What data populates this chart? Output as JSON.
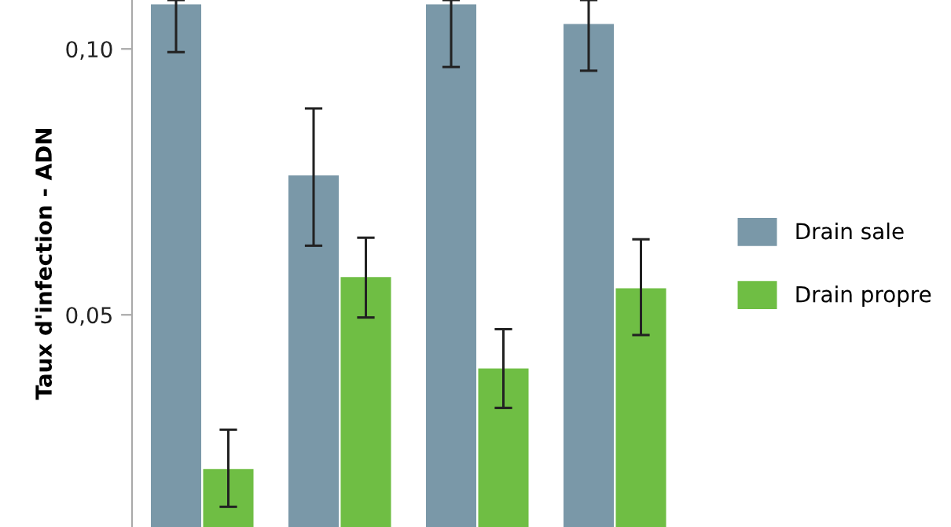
{
  "chart_data": {
    "type": "bar",
    "ylabel": "Taux d'infection - ADN",
    "categories": [
      null,
      null,
      null,
      null
    ],
    "series": [
      {
        "name": "Drain sale",
        "color": "#7a98a8",
        "values": [
          0.1084,
          0.0762,
          0.1084,
          0.1047
        ],
        "errors": [
          [
            0.0994,
            0.1092
          ],
          [
            0.063,
            0.0888
          ],
          [
            0.0966,
            0.1092
          ],
          [
            0.0959,
            0.1092
          ]
        ]
      },
      {
        "name": "Drain propre",
        "color": "#6fbe44",
        "values": [
          0.021,
          0.0571,
          0.0399,
          0.055
        ],
        "errors": [
          [
            0.0139,
            0.0284
          ],
          [
            0.0495,
            0.0645
          ],
          [
            0.0325,
            0.0473
          ],
          [
            0.0462,
            0.0642
          ]
        ]
      }
    ],
    "ylim": [
      0.0101,
      0.1092
    ],
    "yticks": [
      {
        "value": 0.05,
        "label": "0,05"
      },
      {
        "value": 0.1,
        "label": "0,10"
      }
    ],
    "grid": false,
    "legend": "right",
    "tick_labels": "y"
  }
}
